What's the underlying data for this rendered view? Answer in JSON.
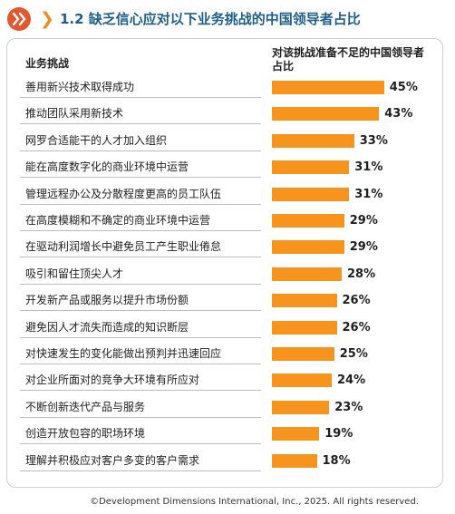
{
  "header": {
    "title": "1.2 缺乏信心应对以下业务挑战的中国领导者占比",
    "logo_icon": "chinese-character-logo-icon",
    "chevron_icon": "chevron-right-icon"
  },
  "colors": {
    "bar": "#f7941d",
    "title": "#1e5f8a",
    "chevron": "#f28c1e",
    "logo": "#e4572e"
  },
  "chart_data": {
    "type": "bar",
    "orientation": "horizontal",
    "category_header": "业务挑战",
    "value_header": "对该挑战准备不足的中国领导者占比",
    "categories": [
      "善用新兴技术取得成功",
      "推动团队采用新技术",
      "网罗合适能干的人才加入组织",
      "能在高度数字化的商业环境中运营",
      "管理远程办公及分散程度更高的员工队伍",
      "在高度模糊和不确定的商业环境中运营",
      "在驱动利润增长中避免员工产生职业倦怠",
      "吸引和留住顶尖人才",
      "开发新产品或服务以提升市场份额",
      "避免因人才流失而造成的知识断层",
      "对快速发生的变化能做出预判并迅速回应",
      "对企业所面对的竞争大环境有所应对",
      "不断创新迭代产品与服务",
      "创造开放包容的职场环境",
      "理解并积极应对客户多变的客户需求"
    ],
    "values": [
      45,
      43,
      33,
      31,
      31,
      29,
      29,
      28,
      26,
      26,
      25,
      24,
      23,
      19,
      18
    ],
    "value_labels": [
      "45%",
      "43%",
      "33%",
      "31%",
      "31%",
      "29%",
      "29%",
      "28%",
      "26%",
      "26%",
      "25%",
      "24%",
      "23%",
      "19%",
      "18%"
    ],
    "unit": "%"
  },
  "footer": {
    "copyright": "©Development Dimensions International, Inc., 2025. All rights reserved."
  }
}
